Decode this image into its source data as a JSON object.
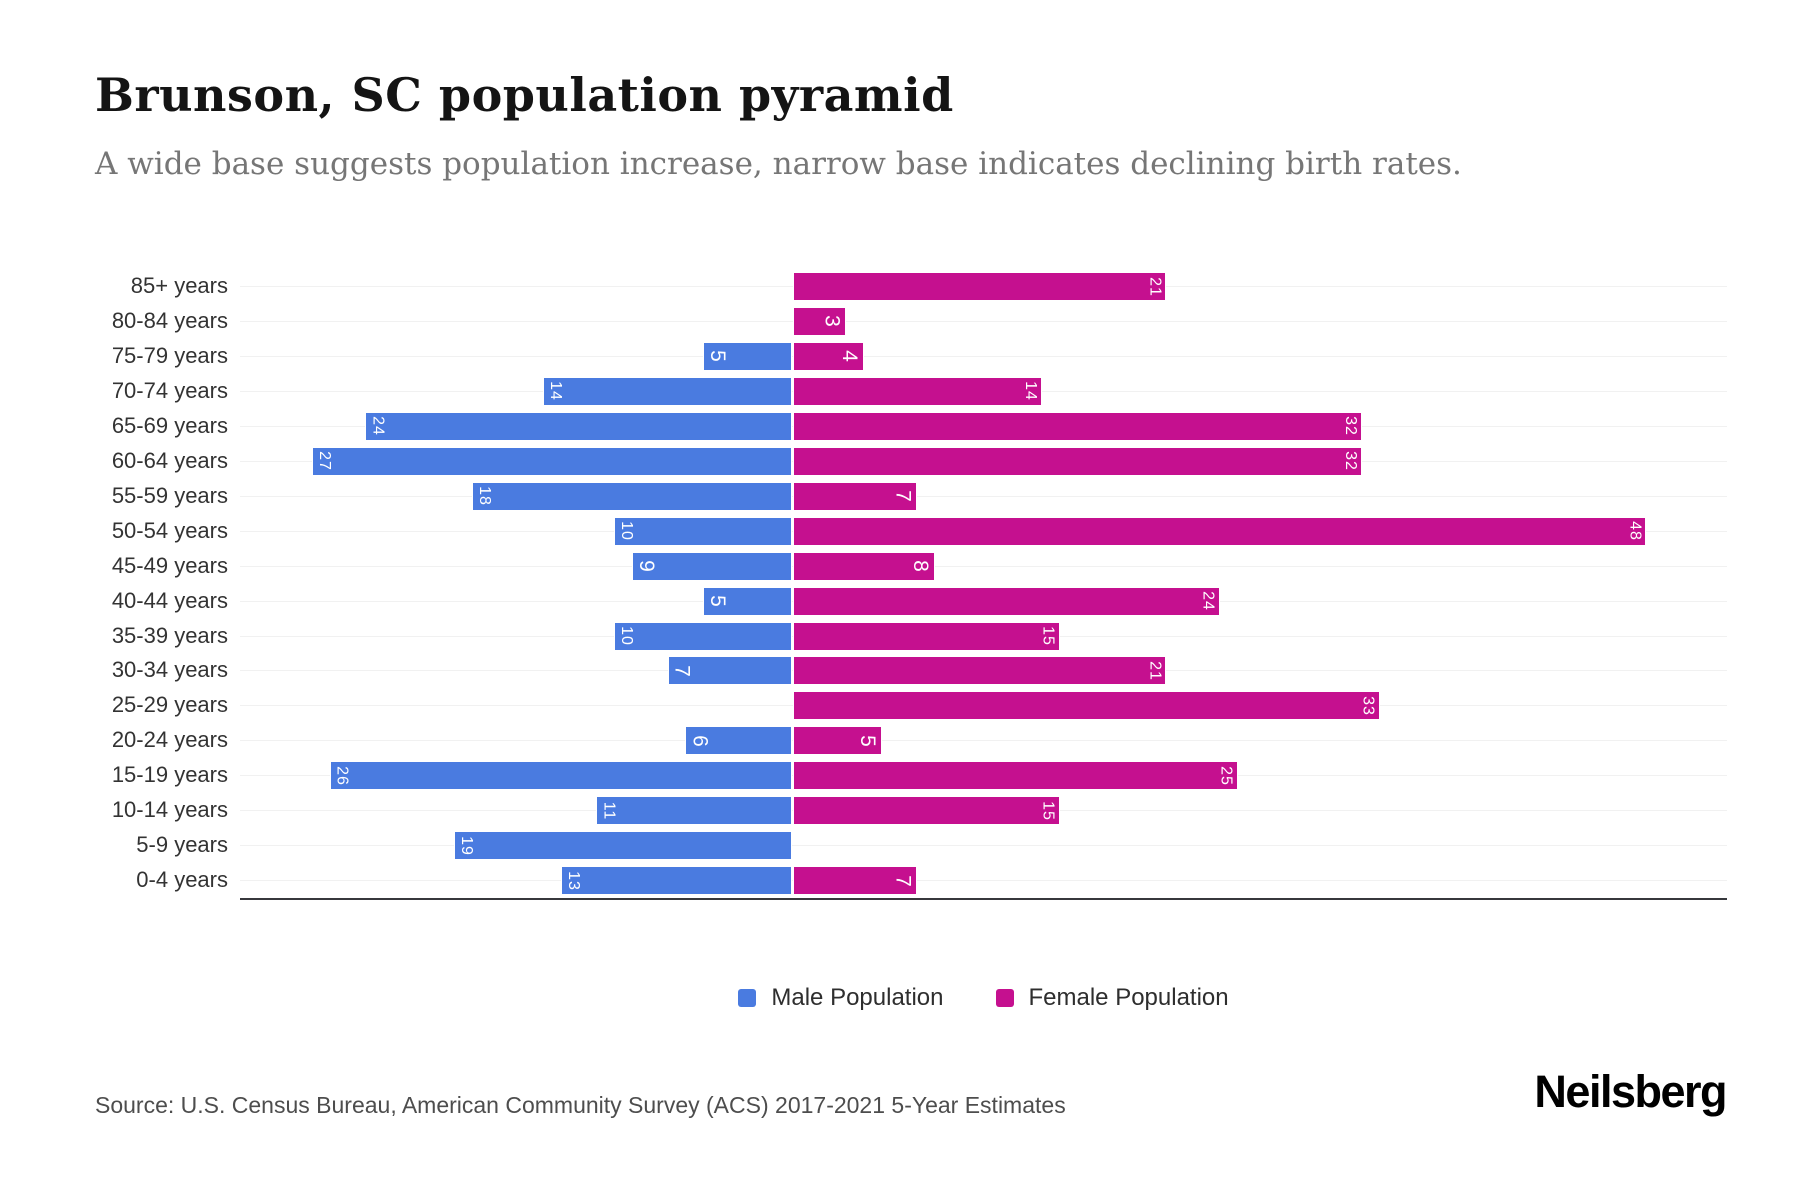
{
  "header": {
    "title": "Brunson, SC population pyramid",
    "subtitle": "A wide base suggests population increase, narrow base indicates declining birth rates."
  },
  "chart_data": {
    "type": "bar",
    "variant": "population-pyramid",
    "orientation": "horizontal",
    "categories": [
      "85+ years",
      "80-84 years",
      "75-79 years",
      "70-74 years",
      "65-69 years",
      "60-64 years",
      "55-59 years",
      "50-54 years",
      "45-49 years",
      "40-44 years",
      "35-39 years",
      "30-34 years",
      "25-29 years",
      "20-24 years",
      "15-19 years",
      "10-14 years",
      "5-9 years",
      "0-4 years"
    ],
    "series": [
      {
        "name": "Male Population",
        "color": "#4a7be0",
        "side": "left",
        "values": [
          0,
          0,
          5,
          14,
          24,
          27,
          18,
          10,
          9,
          5,
          10,
          7,
          0,
          6,
          26,
          11,
          19,
          13
        ]
      },
      {
        "name": "Female Population",
        "color": "#c5108f",
        "side": "right",
        "values": [
          21,
          3,
          4,
          14,
          32,
          32,
          7,
          48,
          8,
          24,
          15,
          21,
          33,
          5,
          25,
          15,
          0,
          7
        ]
      }
    ],
    "value_axis": {
      "left_max": 31,
      "right_max": 52,
      "ticks_visible": false
    },
    "grid": "horizontal-light",
    "legend_position": "bottom",
    "bar_value_labels": "inside-end, white, rotated 90deg"
  },
  "legend": {
    "male_label": "Male Population",
    "female_label": "Female Population"
  },
  "footer": {
    "source": "Source: U.S. Census Bureau, American Community Survey (ACS) 2017-2021 5-Year Estimates",
    "brand": "Neilsberg"
  }
}
